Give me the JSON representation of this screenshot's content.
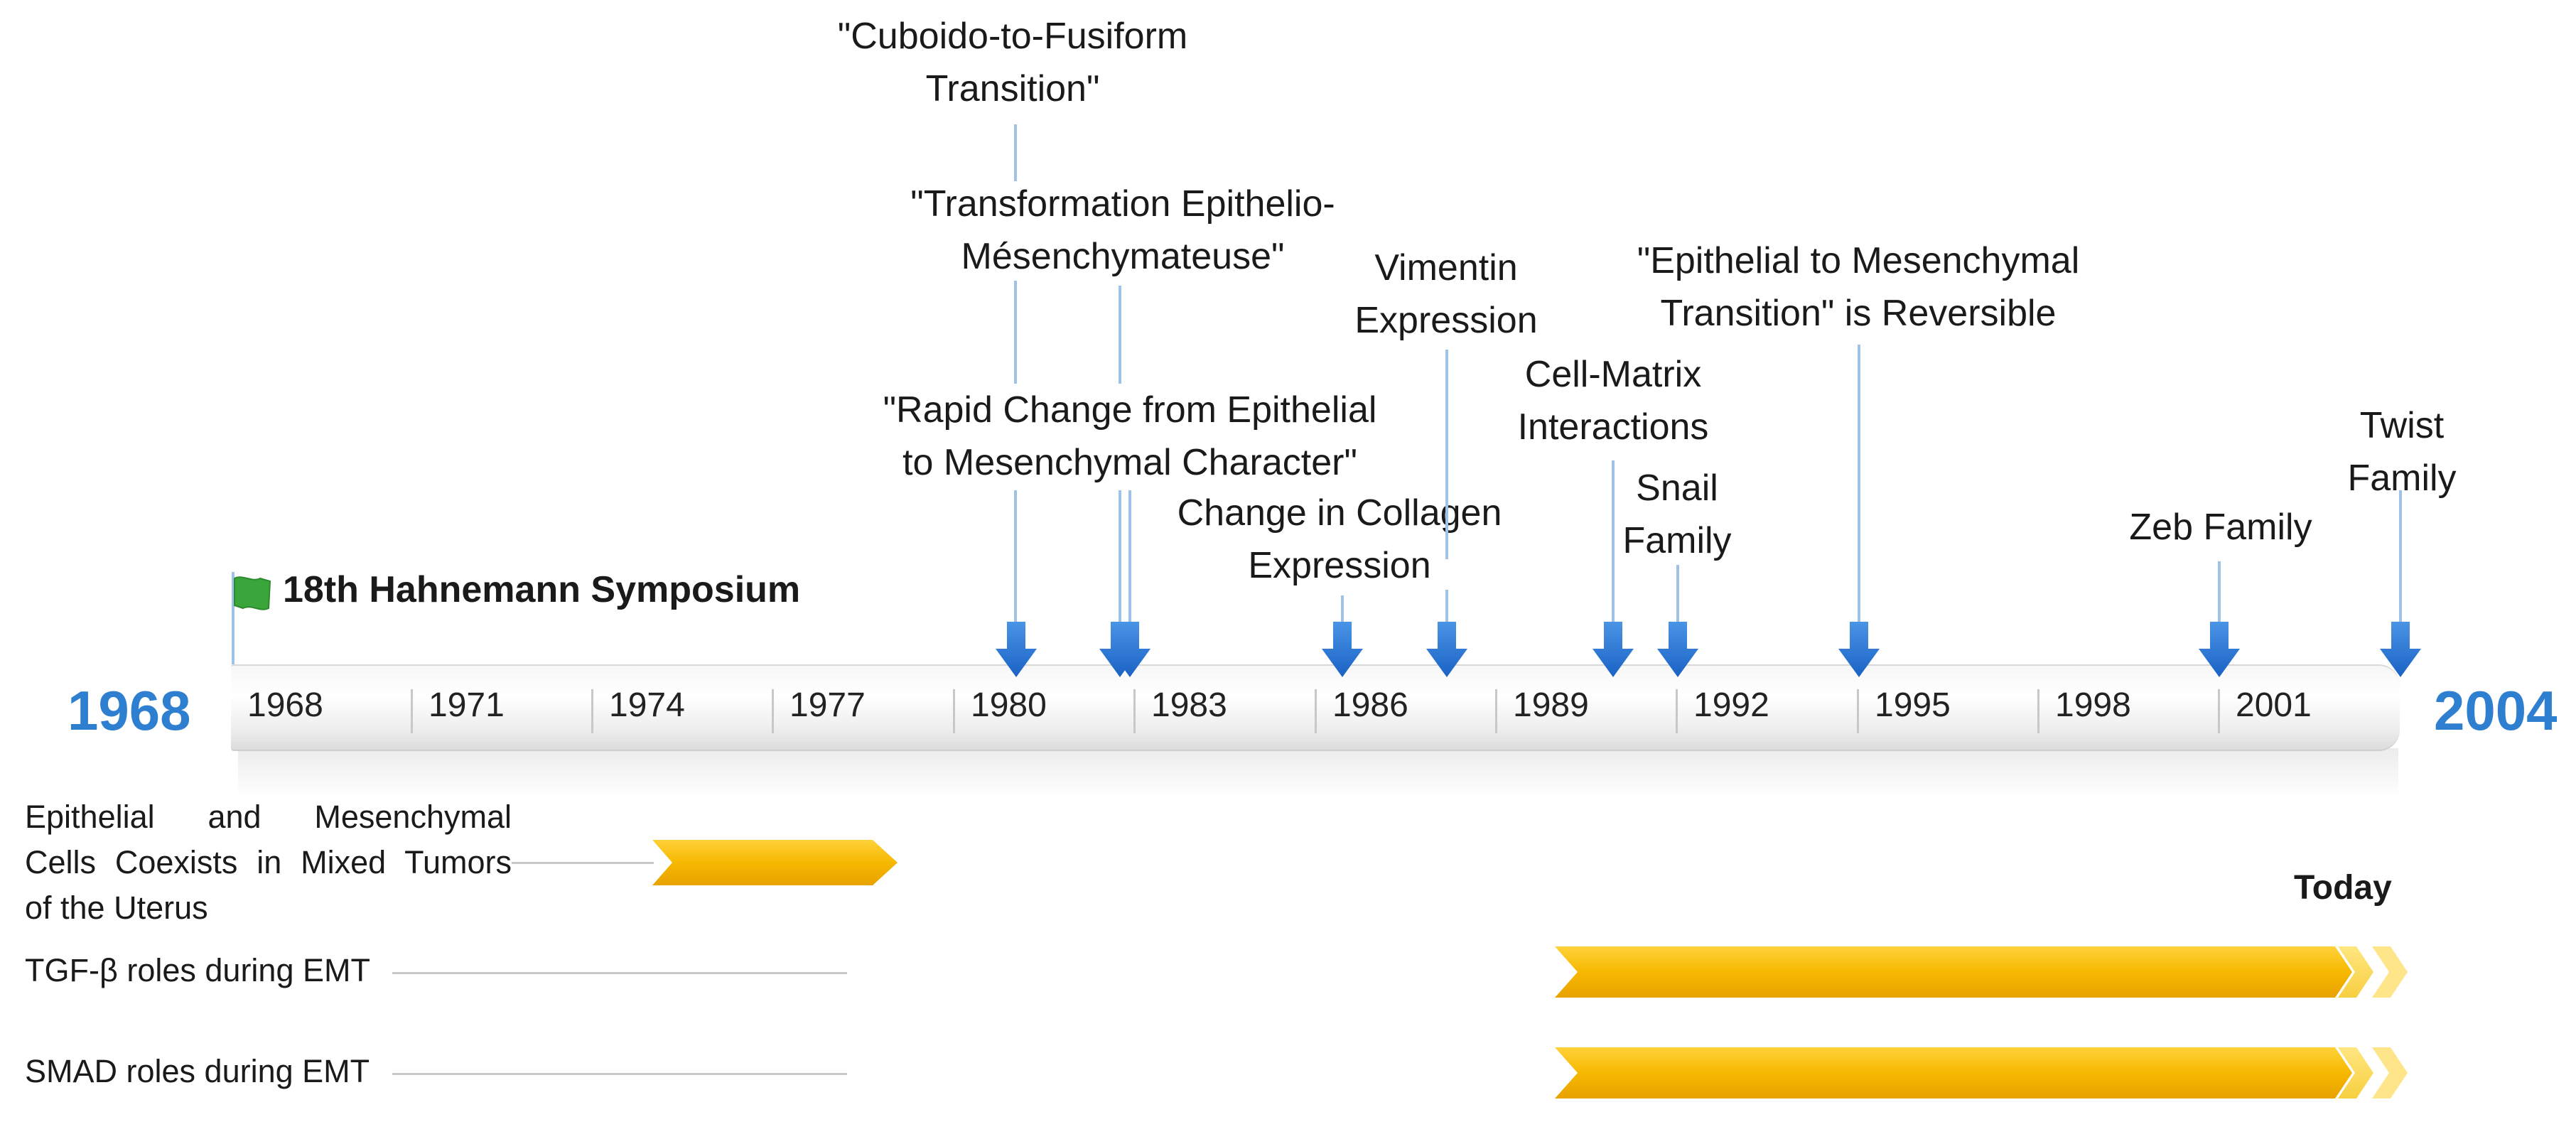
{
  "start_year_label": "1968",
  "end_year_label": "2004",
  "milestone_label": "18th Hahnemann Symposium",
  "today_label": "Today",
  "axis_ticks": [
    "1968",
    "1971",
    "1974",
    "1977",
    "1980",
    "1983",
    "1986",
    "1989",
    "1992",
    "1995",
    "1998",
    "2001"
  ],
  "events": [
    {
      "lines": [
        "\"Cuboido-to-Fusiform",
        "Transition\""
      ]
    },
    {
      "lines": [
        "\"Transformation Epithelio-",
        "Mésenchymateuse\""
      ]
    },
    {
      "lines": [
        "\"Rapid Change from Epithelial",
        "to Mesenchymal  Character\""
      ]
    },
    {
      "lines": [
        "Change in Collagen",
        "Expression"
      ]
    },
    {
      "lines": [
        "Vimentin",
        "Expression"
      ]
    },
    {
      "lines": [
        "Cell-Matrix",
        "Interactions"
      ]
    },
    {
      "lines": [
        "Snail",
        "Family"
      ]
    },
    {
      "lines": [
        "\"Epithelial to Mesenchymal",
        "Transition\" is Reversible"
      ]
    },
    {
      "lines": [
        "Zeb Family"
      ]
    },
    {
      "lines": [
        "Twist",
        "Family"
      ]
    }
  ],
  "ranges": [
    {
      "label_lines": [
        "Epithelial and Mesenchymal",
        "Cells Coexists in Mixed Tumors",
        "of the Uterus"
      ]
    },
    {
      "label": "TGF-β roles during EMT"
    },
    {
      "label": "SMAD roles during EMT"
    }
  ],
  "colors": {
    "accent_blue": "#2f7fd0",
    "arrow_blue": "#1f6fd1",
    "bar_gold": "#f6b800",
    "bar_light": "#ffd84a",
    "flag_green": "#3aa53a"
  },
  "icons": {
    "milestone": "flag-icon",
    "event": "arrow-down-icon",
    "range": "chevron-bar-icon"
  }
}
